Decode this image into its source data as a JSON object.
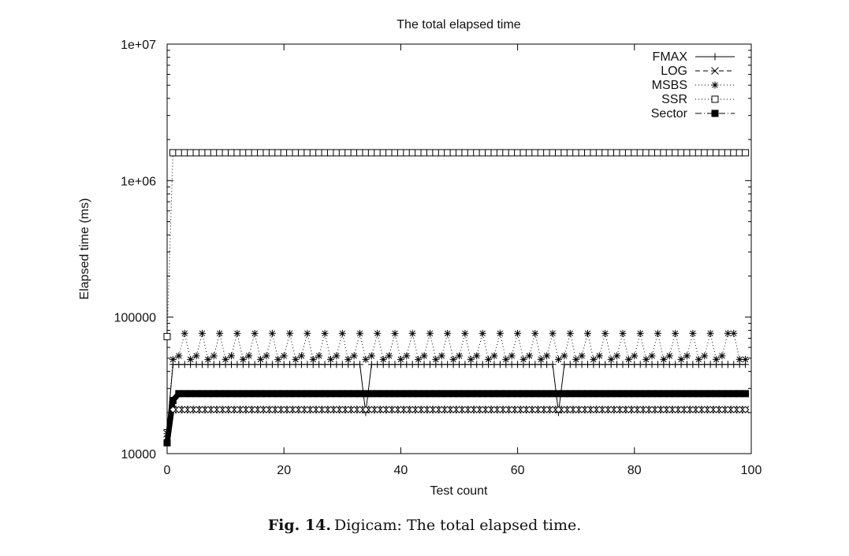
{
  "chart_data": {
    "type": "line",
    "title": "The total elapsed time",
    "xlabel": "Test count",
    "ylabel": "Elapsed time (ms)",
    "xlim": [
      0,
      100
    ],
    "ylim": [
      10000,
      10000000
    ],
    "yscale": "log",
    "xticks": [
      "0",
      "20",
      "40",
      "60",
      "80",
      "100"
    ],
    "yticks": [
      "10000",
      "100000",
      "1e+06",
      "1e+07"
    ],
    "grid": false,
    "legend_position": "top-right",
    "series": [
      {
        "name": "FMAX",
        "style": "solid",
        "marker": "plus",
        "x": [
          0,
          1,
          2,
          3,
          33,
          34,
          35,
          66,
          67,
          68,
          99
        ],
        "y": [
          15000,
          45000,
          45000,
          45000,
          45000,
          20000,
          45000,
          45000,
          20000,
          45000,
          45000
        ],
        "note_text": ""
      },
      {
        "name": "LOG",
        "style": "dashed",
        "marker": "cross",
        "x": [
          0,
          1,
          2,
          99
        ],
        "y": [
          14000,
          21000,
          21000,
          21000
        ]
      },
      {
        "name": "MSBS",
        "style": "dotted",
        "marker": "star",
        "x": [
          0,
          1,
          2,
          3,
          4,
          5,
          6,
          7,
          8,
          9,
          10,
          11,
          12,
          13,
          14,
          15,
          16,
          17,
          18,
          19,
          20,
          21,
          22,
          23,
          24,
          25,
          26,
          27,
          28,
          29,
          30,
          31,
          32,
          33,
          34,
          35,
          36,
          37,
          38,
          39,
          40,
          41,
          42,
          43,
          44,
          45,
          46,
          47,
          48,
          49,
          50,
          51,
          52,
          53,
          54,
          55,
          56,
          57,
          58,
          59,
          60,
          61,
          62,
          63,
          64,
          65,
          66,
          67,
          68,
          69,
          70,
          71,
          72,
          73,
          74,
          75,
          76,
          77,
          78,
          79,
          80,
          81,
          82,
          83,
          84,
          85,
          86,
          87,
          88,
          89,
          90,
          91,
          92,
          93,
          94,
          95,
          96,
          97,
          98,
          99
        ],
        "y": [
          14000,
          49000,
          52000,
          76000,
          49000,
          52000,
          76000,
          49000,
          52000,
          76000,
          49000,
          52000,
          76000,
          49000,
          52000,
          76000,
          49000,
          52000,
          76000,
          49000,
          52000,
          76000,
          49000,
          52000,
          76000,
          49000,
          52000,
          76000,
          49000,
          52000,
          76000,
          49000,
          52000,
          76000,
          49000,
          52000,
          76000,
          49000,
          52000,
          76000,
          49000,
          52000,
          76000,
          49000,
          52000,
          76000,
          49000,
          52000,
          76000,
          49000,
          52000,
          76000,
          49000,
          52000,
          76000,
          49000,
          52000,
          76000,
          49000,
          52000,
          76000,
          49000,
          52000,
          76000,
          49000,
          52000,
          76000,
          49000,
          52000,
          76000,
          49000,
          52000,
          76000,
          49000,
          52000,
          76000,
          49000,
          52000,
          76000,
          49000,
          52000,
          76000,
          49000,
          52000,
          76000,
          49000,
          52000,
          76000,
          49000,
          52000,
          76000,
          49000,
          52000,
          76000,
          49000,
          52000,
          76000,
          76000,
          49000,
          49000
        ]
      },
      {
        "name": "SSR",
        "style": "dotted",
        "marker": "square-open",
        "x": [
          0,
          1,
          2,
          99
        ],
        "y": [
          72000,
          1600000,
          1600000,
          1600000
        ]
      },
      {
        "name": "Sector",
        "style": "dashdot",
        "marker": "square-filled",
        "x": [
          0,
          1,
          2,
          99
        ],
        "y": [
          12000,
          24500,
          27500,
          27500
        ]
      }
    ]
  },
  "caption": {
    "label": "Fig. 14.",
    "text": "Digicam: The total elapsed time."
  }
}
